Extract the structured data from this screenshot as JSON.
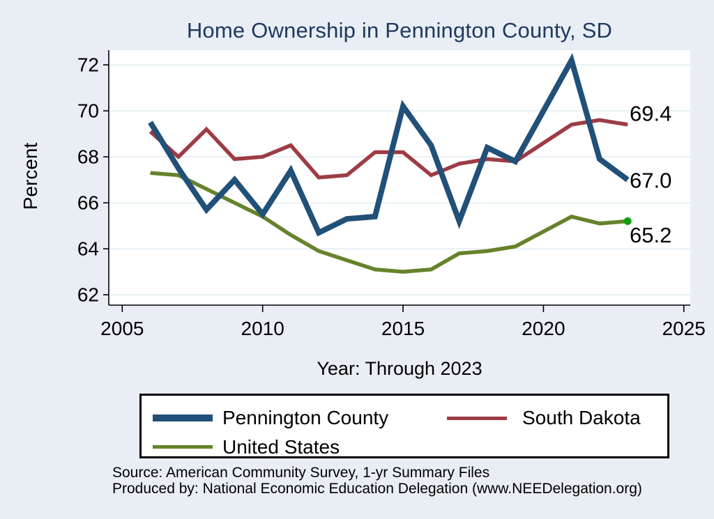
{
  "title": "Home Ownership in Pennington County, SD",
  "chart_data": {
    "type": "line",
    "title": "Home Ownership in Pennington County, SD",
    "xlabel": "Year: Through 2023",
    "ylabel": "Percent",
    "x_ticks": [
      2005,
      2010,
      2015,
      2020,
      2025
    ],
    "y_ticks": [
      62,
      64,
      66,
      68,
      70,
      72
    ],
    "x_range": [
      2004.52,
      2025.23
    ],
    "y_range": [
      61.55,
      72.64
    ],
    "grid": "horizontal",
    "legend_position": "bottom",
    "x": [
      2006,
      2007,
      2008,
      2009,
      2010,
      2011,
      2012,
      2013,
      2014,
      2015,
      2016,
      2017,
      2018,
      2019,
      2021,
      2022,
      2023
    ],
    "series": [
      {
        "name": "United States",
        "color": "#66832c",
        "width": 5.5,
        "end_marker_color": "#10a010",
        "values": [
          67.3,
          67.2,
          66.6,
          66.0,
          65.4,
          64.6,
          63.9,
          63.5,
          63.1,
          63.0,
          63.1,
          63.8,
          63.9,
          64.1,
          65.4,
          65.1,
          65.2
        ]
      },
      {
        "name": "South Dakota",
        "color": "#9e3c44",
        "width": 5.5,
        "values": [
          69.1,
          68.0,
          69.2,
          67.9,
          68.0,
          68.5,
          67.1,
          67.2,
          68.2,
          68.2,
          67.2,
          67.7,
          67.9,
          67.8,
          69.4,
          69.6,
          69.4
        ]
      },
      {
        "name": "Pennington County",
        "color": "#215078",
        "width": 8,
        "values": [
          69.5,
          67.5,
          65.7,
          67.0,
          65.5,
          67.4,
          64.7,
          65.3,
          65.4,
          70.2,
          68.5,
          65.2,
          68.4,
          67.8,
          72.2,
          67.9,
          67.0
        ]
      }
    ],
    "annotations": [
      {
        "text": "69.4",
        "value": 69.4,
        "dy": -16
      },
      {
        "text": "67.0",
        "value": 67.0,
        "dy": 1
      },
      {
        "text": "65.2",
        "value": 65.2,
        "dy": 20
      }
    ],
    "theme": {
      "background": "#e8eef4",
      "plot_background": "#ffffff",
      "gridline_color": "#dce8f1",
      "axis_color": "#000000",
      "title_color": "#20395f"
    }
  },
  "legend": {
    "items": [
      {
        "label": "Pennington County",
        "color": "#215078"
      },
      {
        "label": "South Dakota",
        "color": "#9e3c44"
      },
      {
        "label": "United States",
        "color": "#66832c"
      }
    ]
  },
  "footer": {
    "source_line": "Source: American Community Survey, 1-yr Summary Files",
    "produced_line": "Produced by: National Economic Education Delegation (www.NEEDelegation.org)"
  }
}
